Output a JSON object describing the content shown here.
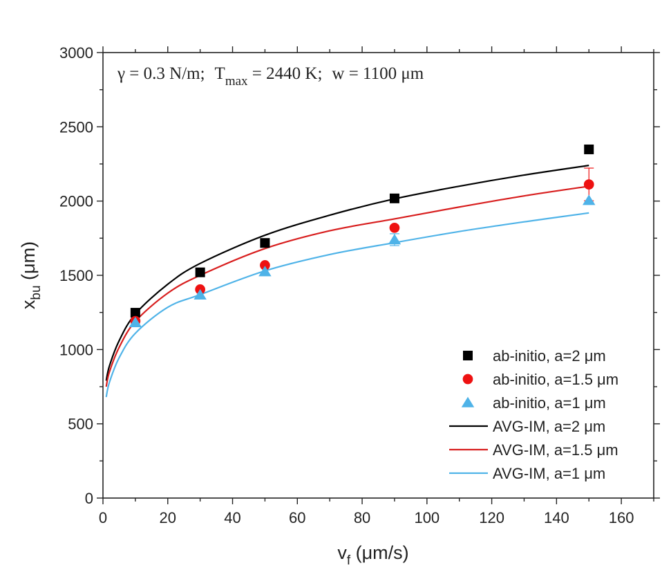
{
  "chart_data": {
    "type": "scatter",
    "annotation": {
      "gamma": "γ = 0.3 N/m",
      "tmax_prefix": "T",
      "tmax_sub": "max",
      "tmax_value": " = 2440 K",
      "width": "w = 1100 μm",
      "separator": ";"
    },
    "xlabel": {
      "main": "v",
      "sub": "f",
      "rest": " (μm/s)"
    },
    "ylabel": {
      "main": "x",
      "sub": "bu",
      "rest": " (μm)"
    },
    "xlim": [
      0,
      170
    ],
    "ylim": [
      0,
      3000
    ],
    "xticks": [
      0,
      20,
      40,
      60,
      80,
      100,
      120,
      140,
      160
    ],
    "yticks": [
      0,
      500,
      1000,
      1500,
      2000,
      2500,
      3000
    ],
    "grid": false,
    "legend_position": "bottom-right",
    "series": [
      {
        "name": "ab-initio, a=2 μm",
        "kind": "points",
        "marker": "square",
        "color": "#000000",
        "x": [
          10,
          30,
          50,
          90,
          150
        ],
        "y": [
          1248,
          1520,
          1718,
          2018,
          2348
        ]
      },
      {
        "name": "ab-initio, a=1.5 μm",
        "kind": "points",
        "marker": "circle",
        "color": "#ee1111",
        "x": [
          10,
          30,
          50,
          90,
          150
        ],
        "y": [
          1192,
          1405,
          1568,
          1820,
          2112
        ],
        "err": [
          0,
          0,
          0,
          0,
          110
        ]
      },
      {
        "name": "ab-initio, a=1 μm",
        "kind": "points",
        "marker": "triangle",
        "color": "#4fb3e8",
        "x": [
          10,
          30,
          50,
          90,
          150
        ],
        "y": [
          1182,
          1368,
          1525,
          1740,
          2005
        ],
        "err": [
          0,
          0,
          0,
          40,
          0
        ]
      },
      {
        "name": "AVG-IM, a=2 μm",
        "kind": "line",
        "color": "#000000",
        "x": [
          1,
          2,
          5,
          10,
          20,
          30,
          50,
          70,
          90,
          110,
          130,
          150
        ],
        "y": [
          790,
          890,
          1060,
          1240,
          1440,
          1580,
          1770,
          1905,
          2015,
          2100,
          2175,
          2240
        ]
      },
      {
        "name": "AVG-IM, a=1.5 μm",
        "kind": "line",
        "color": "#d81e1e",
        "x": [
          1,
          2,
          5,
          10,
          20,
          30,
          50,
          70,
          90,
          110,
          130,
          150
        ],
        "y": [
          750,
          850,
          1015,
          1190,
          1380,
          1500,
          1680,
          1800,
          1880,
          1960,
          2035,
          2100
        ]
      },
      {
        "name": "AVG-IM, a=1 μm",
        "kind": "line",
        "color": "#4fb3e8",
        "x": [
          1,
          2,
          5,
          10,
          20,
          30,
          50,
          70,
          90,
          110,
          130,
          150
        ],
        "y": [
          680,
          780,
          945,
          1110,
          1285,
          1370,
          1530,
          1640,
          1720,
          1795,
          1860,
          1920
        ]
      }
    ]
  }
}
